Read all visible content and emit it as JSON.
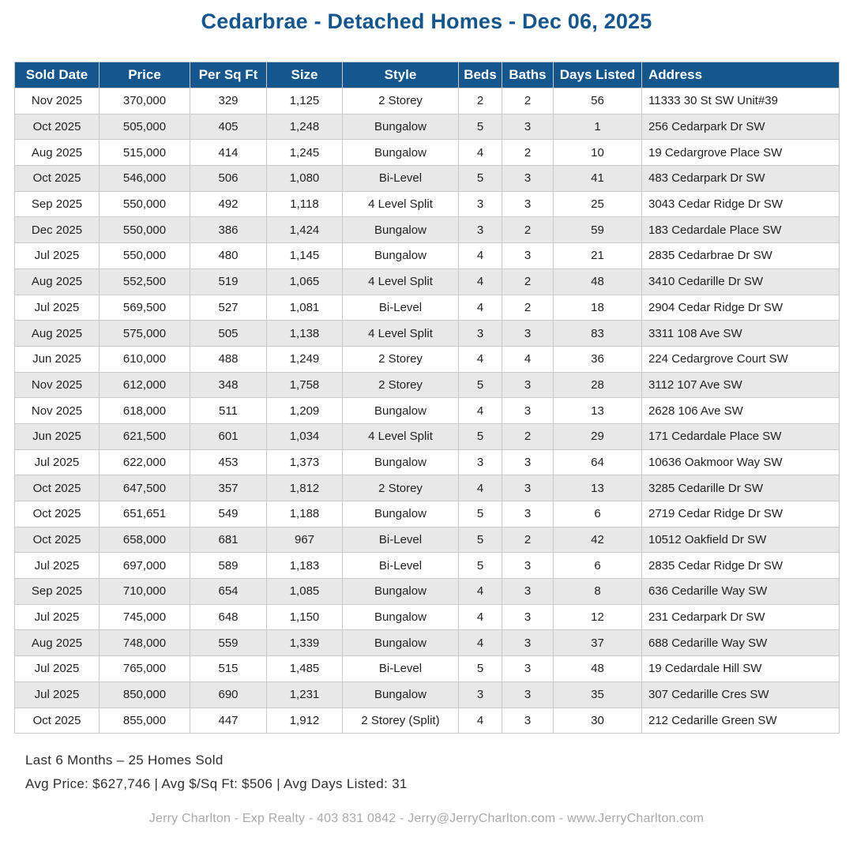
{
  "page_title": "Cedarbrae - Detached Homes - Dec 06, 2025",
  "colors": {
    "header_blue": "#15568c",
    "title_blue": "#15568c",
    "stripe_gray": "#e8e8e8",
    "border_gray": "#c9c9c9",
    "credit_gray": "#a9a9a9"
  },
  "chart_data": {
    "type": "table",
    "title": "Cedarbrae - Detached Homes - Dec 06, 2025",
    "columns": [
      "Sold Date",
      "Price",
      "Per Sq Ft",
      "Size",
      "Style",
      "Beds",
      "Baths",
      "Days Listed",
      "Address"
    ],
    "rows": [
      [
        "Nov 2025",
        "370,000",
        "329",
        "1,125",
        "2 Storey",
        "2",
        "2",
        "56",
        "11333 30 St SW Unit#39"
      ],
      [
        "Oct 2025",
        "505,000",
        "405",
        "1,248",
        "Bungalow",
        "5",
        "3",
        "1",
        "256 Cedarpark Dr SW"
      ],
      [
        "Aug 2025",
        "515,000",
        "414",
        "1,245",
        "Bungalow",
        "4",
        "2",
        "10",
        "19 Cedargrove Place SW"
      ],
      [
        "Oct 2025",
        "546,000",
        "506",
        "1,080",
        "Bi-Level",
        "5",
        "3",
        "41",
        "483 Cedarpark Dr SW"
      ],
      [
        "Sep 2025",
        "550,000",
        "492",
        "1,118",
        "4 Level Split",
        "3",
        "3",
        "25",
        "3043 Cedar Ridge Dr SW"
      ],
      [
        "Dec 2025",
        "550,000",
        "386",
        "1,424",
        "Bungalow",
        "3",
        "2",
        "59",
        "183 Cedardale Place SW"
      ],
      [
        "Jul 2025",
        "550,000",
        "480",
        "1,145",
        "Bungalow",
        "4",
        "3",
        "21",
        "2835 Cedarbrae Dr SW"
      ],
      [
        "Aug 2025",
        "552,500",
        "519",
        "1,065",
        "4 Level Split",
        "4",
        "2",
        "48",
        "3410 Cedarille Dr SW"
      ],
      [
        "Jul 2025",
        "569,500",
        "527",
        "1,081",
        "Bi-Level",
        "4",
        "2",
        "18",
        "2904 Cedar Ridge Dr SW"
      ],
      [
        "Aug 2025",
        "575,000",
        "505",
        "1,138",
        "4 Level Split",
        "3",
        "3",
        "83",
        "3311 108 Ave SW"
      ],
      [
        "Jun 2025",
        "610,000",
        "488",
        "1,249",
        "2 Storey",
        "4",
        "4",
        "36",
        "224 Cedargrove Court SW"
      ],
      [
        "Nov 2025",
        "612,000",
        "348",
        "1,758",
        "2 Storey",
        "5",
        "3",
        "28",
        "3112 107 Ave SW"
      ],
      [
        "Nov 2025",
        "618,000",
        "511",
        "1,209",
        "Bungalow",
        "4",
        "3",
        "13",
        "2628 106 Ave SW"
      ],
      [
        "Jun 2025",
        "621,500",
        "601",
        "1,034",
        "4 Level Split",
        "5",
        "2",
        "29",
        "171 Cedardale Place SW"
      ],
      [
        "Jul 2025",
        "622,000",
        "453",
        "1,373",
        "Bungalow",
        "3",
        "3",
        "64",
        "10636 Oakmoor Way SW"
      ],
      [
        "Oct 2025",
        "647,500",
        "357",
        "1,812",
        "2 Storey",
        "4",
        "3",
        "13",
        "3285 Cedarille Dr SW"
      ],
      [
        "Oct 2025",
        "651,651",
        "549",
        "1,188",
        "Bungalow",
        "5",
        "3",
        "6",
        "2719 Cedar Ridge Dr SW"
      ],
      [
        "Oct 2025",
        "658,000",
        "681",
        "967",
        "Bi-Level",
        "5",
        "2",
        "42",
        "10512 Oakfield Dr SW"
      ],
      [
        "Jul 2025",
        "697,000",
        "589",
        "1,183",
        "Bi-Level",
        "5",
        "3",
        "6",
        "2835 Cedar Ridge Dr SW"
      ],
      [
        "Sep 2025",
        "710,000",
        "654",
        "1,085",
        "Bungalow",
        "4",
        "3",
        "8",
        "636 Cedarille Way SW"
      ],
      [
        "Jul 2025",
        "745,000",
        "648",
        "1,150",
        "Bungalow",
        "4",
        "3",
        "12",
        "231 Cedarpark Dr SW"
      ],
      [
        "Aug 2025",
        "748,000",
        "559",
        "1,339",
        "Bungalow",
        "4",
        "3",
        "37",
        "688 Cedarille Way SW"
      ],
      [
        "Jul 2025",
        "765,000",
        "515",
        "1,485",
        "Bi-Level",
        "5",
        "3",
        "48",
        "19 Cedardale Hill SW"
      ],
      [
        "Jul 2025",
        "850,000",
        "690",
        "1,231",
        "Bungalow",
        "3",
        "3",
        "35",
        "307 Cedarille Cres SW"
      ],
      [
        "Oct 2025",
        "855,000",
        "447",
        "1,912",
        "2 Storey (Split)",
        "4",
        "3",
        "30",
        "212 Cedarille Green SW"
      ]
    ]
  },
  "footer": {
    "summary_line1": "Last 6 Months – 25 Homes Sold",
    "summary_line2": "Avg Price: $627,746 | Avg $/Sq Ft: $506 | Avg Days Listed: 31",
    "credit": "Jerry Charlton - Exp Realty - 403 831 0842 - Jerry@JerryCharlton.com - www.JerryCharlton.com"
  }
}
